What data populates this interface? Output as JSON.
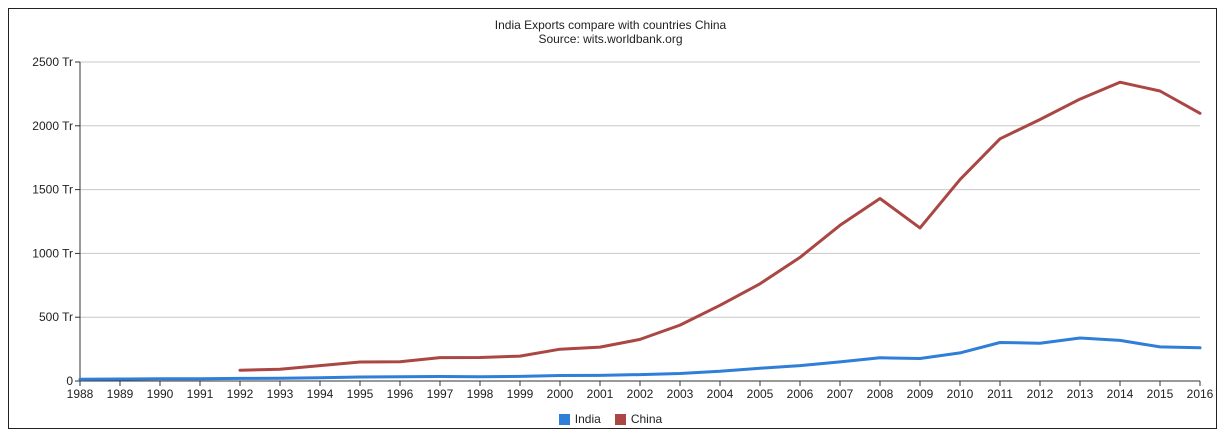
{
  "title": "India Exports compare with countries China",
  "subtitle": "Source: wits.worldbank.org",
  "colors": {
    "India": "#2f7ed8",
    "China": "#aa4643",
    "grid": "#c8c8c8",
    "axis": "#333333"
  },
  "chart_data": {
    "type": "line",
    "title": "India Exports compare with countries China",
    "subtitle": "Source: wits.worldbank.org",
    "xlabel": "",
    "ylabel": "",
    "x": [
      1988,
      1989,
      1990,
      1991,
      1992,
      1993,
      1994,
      1995,
      1996,
      1997,
      1998,
      1999,
      2000,
      2001,
      2002,
      2003,
      2004,
      2005,
      2006,
      2007,
      2008,
      2009,
      2010,
      2011,
      2012,
      2013,
      2014,
      2015,
      2016
    ],
    "ylim": [
      0,
      2500
    ],
    "yticks": [
      0,
      500,
      1000,
      1500,
      2000,
      2500
    ],
    "ytick_labels": [
      "0",
      "500 Tr",
      "1000 Tr",
      "1500 Tr",
      "2000 Tr",
      "2500 Tr"
    ],
    "grid": true,
    "legend_position": "bottom-center",
    "series": [
      {
        "name": "India",
        "values": [
          14,
          16,
          18,
          18,
          20,
          22,
          26,
          31,
          33,
          35,
          34,
          36,
          43,
          44,
          50,
          59,
          76,
          100,
          121,
          150,
          182,
          176,
          220,
          302,
          296,
          337,
          318,
          267,
          260
        ]
      },
      {
        "name": "China",
        "values": [
          null,
          null,
          null,
          null,
          85,
          92,
          121,
          149,
          151,
          183,
          184,
          195,
          249,
          266,
          326,
          438,
          593,
          762,
          969,
          1220,
          1430,
          1200,
          1578,
          1898,
          2049,
          2209,
          2342,
          2273,
          2098
        ]
      }
    ]
  }
}
